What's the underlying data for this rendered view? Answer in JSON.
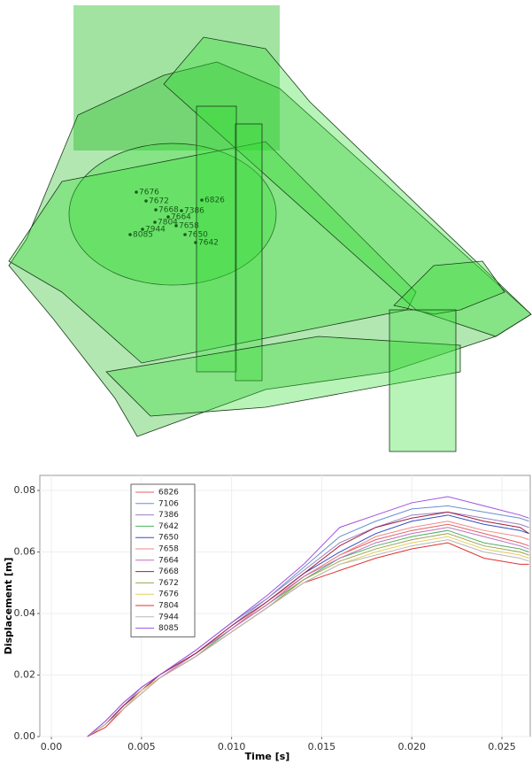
{
  "model": {
    "node_labels": [
      {
        "text": "7676",
        "x": 157,
        "y": 217
      },
      {
        "text": "7672",
        "x": 168,
        "y": 227
      },
      {
        "text": "7668",
        "x": 179,
        "y": 237
      },
      {
        "text": "6826",
        "x": 231,
        "y": 226
      },
      {
        "text": "7386",
        "x": 208,
        "y": 238
      },
      {
        "text": "7664",
        "x": 193,
        "y": 245
      },
      {
        "text": "7804",
        "x": 178,
        "y": 251
      },
      {
        "text": "7944",
        "x": 164,
        "y": 259
      },
      {
        "text": "7658",
        "x": 202,
        "y": 255
      },
      {
        "text": "8085",
        "x": 150,
        "y": 265
      },
      {
        "text": "7650",
        "x": 212,
        "y": 265
      },
      {
        "text": "7642",
        "x": 224,
        "y": 274
      }
    ]
  },
  "chart_data": {
    "type": "line",
    "x_label": "Time [s]",
    "y_label": "Displacement [m]",
    "x": [
      0.002,
      0.003,
      0.004,
      0.005,
      0.006,
      0.008,
      0.01,
      0.012,
      0.014,
      0.016,
      0.018,
      0.02,
      0.022,
      0.024,
      0.026,
      0.0265
    ],
    "xlim": [
      -0.00064,
      0.02657
    ],
    "ylim": [
      0,
      0.0849
    ],
    "xticks": [
      {
        "value": 0,
        "label": "0.00"
      },
      0.005,
      {
        "value": 0.01,
        "label": "0.010"
      },
      0.015,
      {
        "value": 0.02,
        "label": "0.020"
      },
      0.025
    ],
    "yticks": [
      {
        "value": 0,
        "label": "0.00"
      },
      0.02,
      0.04,
      0.06,
      0.08
    ],
    "grid": true,
    "series": [
      {
        "name": "6826",
        "color": "#e06060",
        "values": [
          0,
          0.004,
          0.01,
          0.015,
          0.02,
          0.027,
          0.035,
          0.043,
          0.052,
          0.059,
          0.064,
          0.067,
          0.069,
          0.066,
          0.063,
          0.062
        ]
      },
      {
        "name": "7106",
        "color": "#6a8fd0",
        "values": [
          0,
          0.005,
          0.011,
          0.016,
          0.02,
          0.028,
          0.037,
          0.045,
          0.055,
          0.065,
          0.07,
          0.074,
          0.075,
          0.073,
          0.071,
          0.07
        ]
      },
      {
        "name": "7386",
        "color": "#9a80c0",
        "values": [
          0,
          0.004,
          0.01,
          0.016,
          0.02,
          0.027,
          0.036,
          0.045,
          0.054,
          0.063,
          0.068,
          0.072,
          0.073,
          0.071,
          0.069,
          0.068
        ]
      },
      {
        "name": "7642",
        "color": "#50b060",
        "values": [
          0,
          0.004,
          0.01,
          0.015,
          0.019,
          0.026,
          0.035,
          0.043,
          0.051,
          0.058,
          0.062,
          0.065,
          0.067,
          0.063,
          0.061,
          0.06
        ]
      },
      {
        "name": "7650",
        "color": "#3050c0",
        "values": [
          0,
          0.004,
          0.01,
          0.015,
          0.02,
          0.027,
          0.035,
          0.044,
          0.053,
          0.06,
          0.066,
          0.07,
          0.072,
          0.069,
          0.067,
          0.066
        ]
      },
      {
        "name": "7658",
        "color": "#f08a8a",
        "values": [
          0,
          0.004,
          0.01,
          0.015,
          0.02,
          0.027,
          0.035,
          0.044,
          0.052,
          0.059,
          0.065,
          0.068,
          0.07,
          0.067,
          0.065,
          0.064
        ]
      },
      {
        "name": "7664",
        "color": "#c070c0",
        "values": [
          0,
          0.004,
          0.01,
          0.015,
          0.019,
          0.027,
          0.035,
          0.043,
          0.052,
          0.058,
          0.063,
          0.066,
          0.068,
          0.065,
          0.062,
          0.061
        ]
      },
      {
        "name": "7668",
        "color": "#a02040",
        "values": [
          0,
          0.004,
          0.01,
          0.015,
          0.02,
          0.027,
          0.036,
          0.044,
          0.053,
          0.062,
          0.068,
          0.071,
          0.073,
          0.07,
          0.068,
          0.066
        ]
      },
      {
        "name": "7672",
        "color": "#a0a050",
        "values": [
          0,
          0.004,
          0.009,
          0.015,
          0.019,
          0.026,
          0.034,
          0.042,
          0.051,
          0.057,
          0.061,
          0.064,
          0.066,
          0.062,
          0.06,
          0.059
        ]
      },
      {
        "name": "7676",
        "color": "#e0d060",
        "values": [
          0,
          0.004,
          0.009,
          0.015,
          0.019,
          0.026,
          0.034,
          0.042,
          0.05,
          0.056,
          0.06,
          0.063,
          0.065,
          0.061,
          0.059,
          0.058
        ]
      },
      {
        "name": "7804",
        "color": "#e03030",
        "values": [
          0,
          0.003,
          0.009,
          0.014,
          0.019,
          0.026,
          0.034,
          0.042,
          0.05,
          0.054,
          0.058,
          0.061,
          0.063,
          0.058,
          0.056,
          0.056
        ]
      },
      {
        "name": "7944",
        "color": "#b8b8b8",
        "values": [
          0,
          0.004,
          0.009,
          0.014,
          0.019,
          0.026,
          0.034,
          0.042,
          0.05,
          0.056,
          0.059,
          0.062,
          0.064,
          0.06,
          0.058,
          0.057
        ]
      },
      {
        "name": "8085",
        "color": "#a050e0",
        "values": [
          0,
          0.005,
          0.011,
          0.016,
          0.02,
          0.028,
          0.037,
          0.046,
          0.056,
          0.068,
          0.072,
          0.076,
          0.078,
          0.075,
          0.072,
          0.071
        ]
      }
    ]
  }
}
